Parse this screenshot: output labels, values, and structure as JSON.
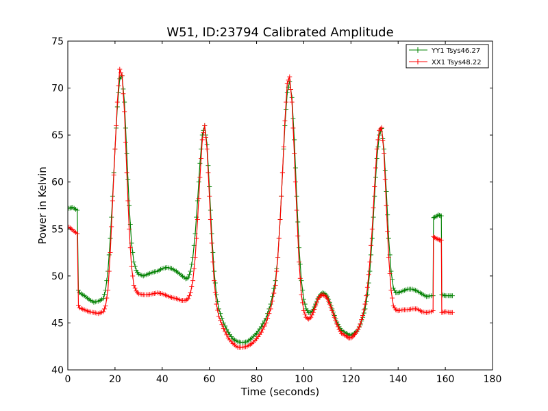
{
  "chart_data": {
    "type": "line",
    "title": "W51, ID:23794 Calibrated Amplitude",
    "xlabel": "Time (seconds)",
    "ylabel": "Power in Kelvin",
    "xlim": [
      0,
      180
    ],
    "ylim": [
      40,
      75
    ],
    "xticks": [
      0,
      20,
      40,
      60,
      80,
      100,
      120,
      140,
      160,
      180
    ],
    "yticks": [
      40,
      45,
      50,
      55,
      60,
      65,
      70,
      75
    ],
    "grid": false,
    "legend_position": "top-right",
    "marker": "+",
    "series": [
      {
        "name": "YY1 Tsys46.27",
        "color": "#008000",
        "points": [
          [
            0.5,
            57.2
          ],
          [
            2,
            57.3
          ],
          [
            4,
            57.0
          ],
          [
            4.5,
            48.5
          ],
          [
            5,
            48.2
          ],
          [
            7,
            47.9
          ],
          [
            9,
            47.5
          ],
          [
            11,
            47.2
          ],
          [
            13,
            47.3
          ],
          [
            15,
            47.6
          ],
          [
            16,
            48.5
          ],
          [
            17,
            50.5
          ],
          [
            18,
            54.0
          ],
          [
            19,
            58.5
          ],
          [
            20,
            63.5
          ],
          [
            21,
            68.0
          ],
          [
            22,
            71.0
          ],
          [
            23,
            71.3
          ],
          [
            24,
            68.5
          ],
          [
            25,
            63.0
          ],
          [
            26,
            57.5
          ],
          [
            27,
            53.5
          ],
          [
            28,
            51.5
          ],
          [
            29,
            50.6
          ],
          [
            30,
            50.2
          ],
          [
            32,
            50.0
          ],
          [
            34,
            50.2
          ],
          [
            36,
            50.4
          ],
          [
            38,
            50.5
          ],
          [
            40,
            50.8
          ],
          [
            42,
            50.9
          ],
          [
            44,
            50.8
          ],
          [
            46,
            50.5
          ],
          [
            48,
            50.1
          ],
          [
            50,
            49.7
          ],
          [
            51,
            49.8
          ],
          [
            52,
            50.5
          ],
          [
            53,
            52.0
          ],
          [
            54,
            54.5
          ],
          [
            55,
            58.0
          ],
          [
            56,
            62.0
          ],
          [
            57,
            65.0
          ],
          [
            58,
            66.0
          ],
          [
            59,
            64.0
          ],
          [
            60,
            59.5
          ],
          [
            61,
            54.5
          ],
          [
            62,
            50.5
          ],
          [
            63,
            48.0
          ],
          [
            64,
            46.5
          ],
          [
            66,
            45.0
          ],
          [
            68,
            44.0
          ],
          [
            70,
            43.3
          ],
          [
            72,
            43.0
          ],
          [
            74,
            42.9
          ],
          [
            76,
            43.0
          ],
          [
            78,
            43.4
          ],
          [
            80,
            43.9
          ],
          [
            82,
            44.6
          ],
          [
            84,
            45.5
          ],
          [
            86,
            47.0
          ],
          [
            88,
            49.5
          ],
          [
            89,
            52.0
          ],
          [
            90,
            56.0
          ],
          [
            91,
            61.0
          ],
          [
            92,
            66.0
          ],
          [
            93,
            69.5
          ],
          [
            94,
            70.7
          ],
          [
            95,
            69.0
          ],
          [
            96,
            64.5
          ],
          [
            97,
            58.5
          ],
          [
            98,
            53.0
          ],
          [
            99,
            49.5
          ],
          [
            100,
            47.5
          ],
          [
            101,
            46.5
          ],
          [
            102,
            46.1
          ],
          [
            103,
            46.1
          ],
          [
            104,
            46.4
          ],
          [
            105,
            47.0
          ],
          [
            106,
            47.6
          ],
          [
            107,
            48.0
          ],
          [
            108,
            48.2
          ],
          [
            109,
            48.1
          ],
          [
            110,
            47.8
          ],
          [
            111,
            47.2
          ],
          [
            112,
            46.5
          ],
          [
            113,
            45.8
          ],
          [
            114,
            45.1
          ],
          [
            115,
            44.6
          ],
          [
            116,
            44.2
          ],
          [
            118,
            43.9
          ],
          [
            119,
            43.7
          ],
          [
            120,
            43.7
          ],
          [
            121,
            43.8
          ],
          [
            122,
            44.0
          ],
          [
            123,
            44.3
          ],
          [
            124,
            44.8
          ],
          [
            125,
            45.6
          ],
          [
            126,
            46.5
          ],
          [
            127,
            48.0
          ],
          [
            128,
            50.5
          ],
          [
            129,
            54.0
          ],
          [
            130,
            58.5
          ],
          [
            131,
            62.5
          ],
          [
            132,
            65.0
          ],
          [
            133,
            65.7
          ],
          [
            134,
            63.5
          ],
          [
            135,
            59.0
          ],
          [
            136,
            54.0
          ],
          [
            137,
            50.5
          ],
          [
            138,
            48.7
          ],
          [
            139,
            48.2
          ],
          [
            140,
            48.2
          ],
          [
            142,
            48.4
          ],
          [
            144,
            48.6
          ],
          [
            146,
            48.6
          ],
          [
            148,
            48.4
          ],
          [
            150,
            48.1
          ],
          [
            152,
            47.8
          ],
          [
            154,
            47.9
          ],
          [
            154.8,
            47.9
          ],
          [
            155,
            56.2
          ],
          [
            156,
            56.3
          ],
          [
            157,
            56.5
          ],
          [
            158,
            56.4
          ],
          [
            158.3,
            56.4
          ],
          [
            158.5,
            48.0
          ],
          [
            160,
            47.9
          ],
          [
            162,
            47.9
          ],
          [
            163,
            47.9
          ]
        ]
      },
      {
        "name": "XX1 Tsys48.22",
        "color": "#ff0000",
        "points": [
          [
            0.5,
            55.2
          ],
          [
            2,
            54.9
          ],
          [
            4,
            54.5
          ],
          [
            4.5,
            46.9
          ],
          [
            5,
            46.6
          ],
          [
            7,
            46.4
          ],
          [
            9,
            46.2
          ],
          [
            11,
            46.1
          ],
          [
            13,
            46.0
          ],
          [
            15,
            46.2
          ],
          [
            16,
            46.8
          ],
          [
            17,
            48.5
          ],
          [
            18,
            52.5
          ],
          [
            19,
            58.0
          ],
          [
            20,
            63.5
          ],
          [
            21,
            68.5
          ],
          [
            22,
            72.0
          ],
          [
            23,
            71.3
          ],
          [
            24,
            67.5
          ],
          [
            25,
            61.0
          ],
          [
            26,
            55.0
          ],
          [
            27,
            51.0
          ],
          [
            28,
            49.0
          ],
          [
            29,
            48.4
          ],
          [
            30,
            48.1
          ],
          [
            32,
            48.0
          ],
          [
            34,
            48.0
          ],
          [
            36,
            48.1
          ],
          [
            38,
            48.2
          ],
          [
            40,
            48.1
          ],
          [
            42,
            47.9
          ],
          [
            44,
            47.7
          ],
          [
            46,
            47.6
          ],
          [
            48,
            47.4
          ],
          [
            50,
            47.4
          ],
          [
            51,
            47.6
          ],
          [
            52,
            48.2
          ],
          [
            53,
            49.5
          ],
          [
            54,
            52.0
          ],
          [
            55,
            56.0
          ],
          [
            56,
            60.5
          ],
          [
            57,
            64.5
          ],
          [
            58,
            66.0
          ],
          [
            59,
            63.5
          ],
          [
            60,
            58.5
          ],
          [
            61,
            53.5
          ],
          [
            62,
            49.5
          ],
          [
            63,
            47.0
          ],
          [
            64,
            45.7
          ],
          [
            66,
            44.4
          ],
          [
            68,
            43.4
          ],
          [
            70,
            42.8
          ],
          [
            72,
            42.4
          ],
          [
            74,
            42.4
          ],
          [
            76,
            42.5
          ],
          [
            78,
            42.8
          ],
          [
            80,
            43.3
          ],
          [
            82,
            44.0
          ],
          [
            84,
            45.0
          ],
          [
            86,
            46.5
          ],
          [
            88,
            49.0
          ],
          [
            89,
            52.0
          ],
          [
            90,
            56.0
          ],
          [
            91,
            61.0
          ],
          [
            92,
            66.5
          ],
          [
            93,
            70.5
          ],
          [
            94,
            71.2
          ],
          [
            95,
            68.5
          ],
          [
            96,
            63.0
          ],
          [
            97,
            57.0
          ],
          [
            98,
            51.5
          ],
          [
            99,
            48.0
          ],
          [
            100,
            46.3
          ],
          [
            101,
            45.6
          ],
          [
            102,
            45.4
          ],
          [
            103,
            45.6
          ],
          [
            104,
            46.1
          ],
          [
            105,
            46.8
          ],
          [
            106,
            47.5
          ],
          [
            107,
            47.9
          ],
          [
            108,
            48.0
          ],
          [
            109,
            47.9
          ],
          [
            110,
            47.6
          ],
          [
            111,
            47.0
          ],
          [
            112,
            46.3
          ],
          [
            113,
            45.6
          ],
          [
            114,
            44.9
          ],
          [
            115,
            44.3
          ],
          [
            116,
            43.9
          ],
          [
            118,
            43.6
          ],
          [
            119,
            43.4
          ],
          [
            120,
            43.4
          ],
          [
            121,
            43.6
          ],
          [
            122,
            43.9
          ],
          [
            123,
            44.3
          ],
          [
            124,
            44.9
          ],
          [
            125,
            45.8
          ],
          [
            126,
            47.0
          ],
          [
            127,
            48.8
          ],
          [
            128,
            51.5
          ],
          [
            129,
            55.0
          ],
          [
            130,
            59.5
          ],
          [
            131,
            63.5
          ],
          [
            132,
            65.5
          ],
          [
            133,
            65.8
          ],
          [
            134,
            63.0
          ],
          [
            135,
            57.5
          ],
          [
            136,
            52.0
          ],
          [
            137,
            48.5
          ],
          [
            138,
            46.8
          ],
          [
            139,
            46.4
          ],
          [
            140,
            46.3
          ],
          [
            142,
            46.4
          ],
          [
            144,
            46.4
          ],
          [
            146,
            46.5
          ],
          [
            148,
            46.5
          ],
          [
            150,
            46.2
          ],
          [
            152,
            46.1
          ],
          [
            154,
            46.2
          ],
          [
            154.8,
            46.3
          ],
          [
            155,
            54.2
          ],
          [
            156,
            54.0
          ],
          [
            157,
            53.9
          ],
          [
            158,
            53.8
          ],
          [
            158.3,
            53.8
          ],
          [
            158.5,
            46.1
          ],
          [
            160,
            46.2
          ],
          [
            162,
            46.1
          ],
          [
            163,
            46.1
          ]
        ]
      }
    ]
  }
}
